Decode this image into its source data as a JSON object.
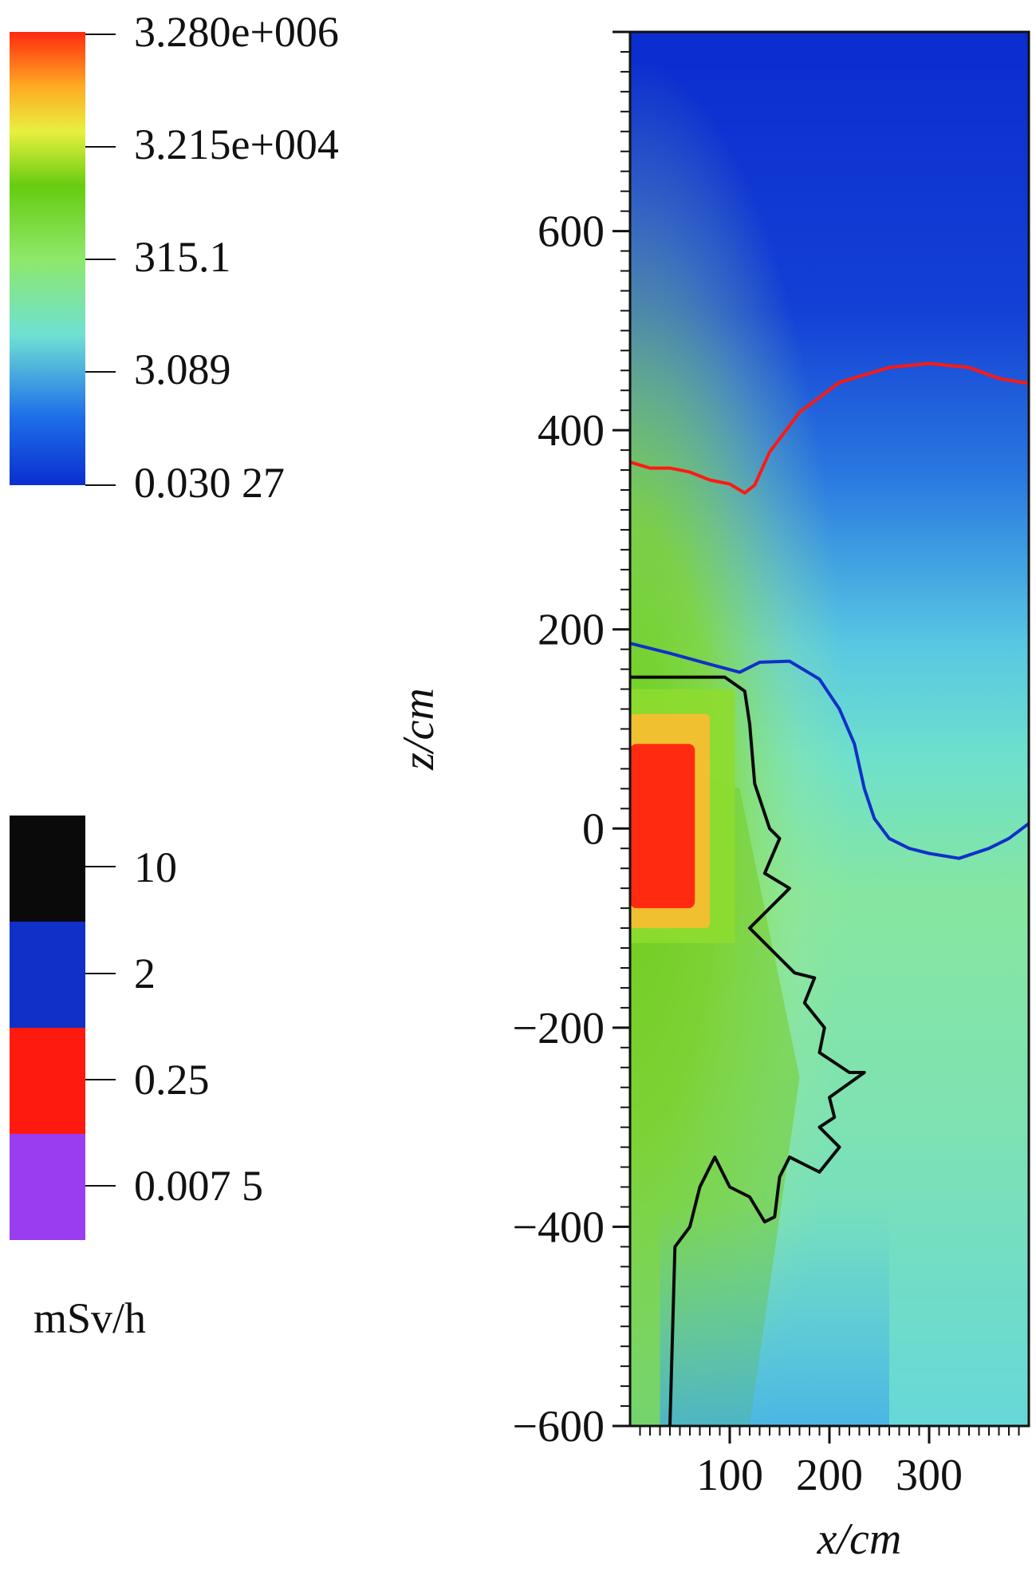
{
  "chart_data": {
    "type": "heatmap",
    "title": "",
    "xlabel": "x/cm",
    "ylabel": "z/cm",
    "xlim": [
      0,
      400
    ],
    "ylim": [
      -600,
      800
    ],
    "x_tick_labels": [
      "100",
      "200",
      "300"
    ],
    "x_ticks": [
      100,
      200,
      300
    ],
    "y_tick_labels": [
      "600",
      "400",
      "200",
      "0",
      "−200",
      "−400",
      "−600"
    ],
    "y_ticks": [
      600,
      400,
      200,
      0,
      -200,
      -400,
      -600
    ],
    "dose_colorbar": {
      "scale": "log",
      "stops": [
        "#0a2fd0",
        "#1e6ee8",
        "#6fe0d4",
        "#8ee86a",
        "#66cc10",
        "#e8f040",
        "#ffaa22",
        "#ff2a10"
      ],
      "labels": [
        "3.280e+006",
        "3.215e+004",
        "315.1",
        "3.089",
        "0.030 27"
      ],
      "values": [
        3280000,
        32150,
        315.1,
        3.089,
        0.03027
      ]
    },
    "contour_levels": {
      "unit": "mSv/h",
      "labels": [
        "10",
        "2",
        "0.25",
        "0.007 5"
      ],
      "values": [
        10,
        2,
        0.25,
        0.0075
      ],
      "colors": [
        "#0a0a0a",
        "#1030c8",
        "#ff1a10",
        "#9a3cf0"
      ]
    },
    "series": [
      {
        "level": 0.25,
        "color": "#ff1a10",
        "points": [
          [
            0,
            368
          ],
          [
            20,
            362
          ],
          [
            40,
            362
          ],
          [
            60,
            358
          ],
          [
            80,
            350
          ],
          [
            100,
            346
          ],
          [
            115,
            337
          ],
          [
            125,
            345
          ],
          [
            140,
            378
          ],
          [
            170,
            418
          ],
          [
            210,
            448
          ],
          [
            260,
            463
          ],
          [
            300,
            467
          ],
          [
            340,
            463
          ],
          [
            370,
            452
          ],
          [
            400,
            447
          ]
        ]
      },
      {
        "level": 2,
        "color": "#1030c8",
        "points": [
          [
            0,
            186
          ],
          [
            40,
            176
          ],
          [
            80,
            165
          ],
          [
            110,
            157
          ],
          [
            130,
            167
          ],
          [
            160,
            168
          ],
          [
            190,
            150
          ],
          [
            210,
            120
          ],
          [
            225,
            85
          ],
          [
            235,
            40
          ],
          [
            245,
            10
          ],
          [
            260,
            -10
          ],
          [
            280,
            -20
          ],
          [
            300,
            -25
          ],
          [
            330,
            -30
          ],
          [
            360,
            -20
          ],
          [
            380,
            -10
          ],
          [
            400,
            5
          ]
        ]
      },
      {
        "level": 10,
        "color": "#0a0a0a",
        "points": [
          [
            0,
            152
          ],
          [
            60,
            152
          ],
          [
            95,
            152
          ],
          [
            115,
            138
          ],
          [
            120,
            105
          ],
          [
            125,
            45
          ],
          [
            140,
            0
          ],
          [
            150,
            -10
          ],
          [
            135,
            -45
          ],
          [
            160,
            -60
          ],
          [
            120,
            -100
          ],
          [
            150,
            -130
          ],
          [
            165,
            -145
          ],
          [
            185,
            -150
          ],
          [
            175,
            -175
          ],
          [
            195,
            -200
          ],
          [
            190,
            -225
          ],
          [
            220,
            -245
          ],
          [
            235,
            -245
          ],
          [
            200,
            -270
          ],
          [
            205,
            -290
          ],
          [
            190,
            -300
          ],
          [
            210,
            -320
          ],
          [
            190,
            -345
          ],
          [
            160,
            -330
          ],
          [
            150,
            -350
          ],
          [
            145,
            -390
          ],
          [
            135,
            -395
          ],
          [
            120,
            -370
          ],
          [
            100,
            -360
          ],
          [
            85,
            -330
          ],
          [
            70,
            -360
          ],
          [
            60,
            -400
          ],
          [
            45,
            -420
          ],
          [
            40,
            -600
          ]
        ]
      }
    ]
  }
}
